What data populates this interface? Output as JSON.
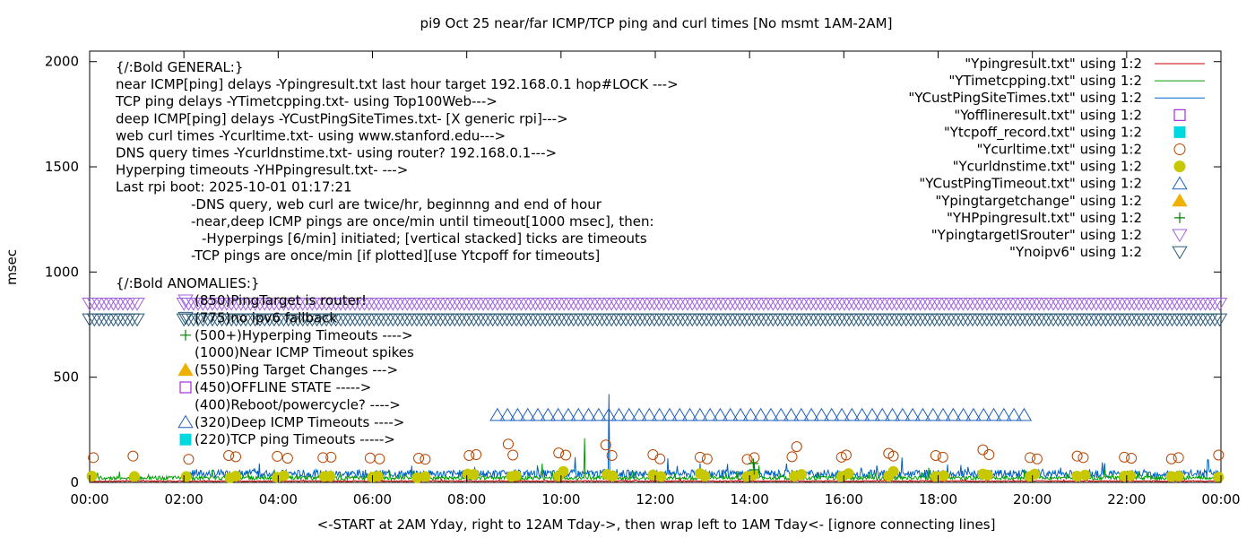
{
  "chart_data": {
    "type": "line",
    "title": "pi9 Oct 25  near/far ICMP/TCP ping and curl times [No msmt 1AM-2AM]",
    "xlabel": "<-START at 2AM Yday, right to 12AM Tday->, then wrap left to 1AM Tday<- [ignore connecting lines]",
    "ylabel": "msec",
    "xlim": [
      0,
      24
    ],
    "ylim": [
      0,
      2050
    ],
    "x_ticks": [
      0,
      2,
      4,
      6,
      8,
      10,
      12,
      14,
      16,
      18,
      20,
      22,
      24
    ],
    "x_tick_labels": [
      "00:00",
      "02:00",
      "04:00",
      "06:00",
      "08:00",
      "10:00",
      "12:00",
      "14:00",
      "16:00",
      "18:00",
      "20:00",
      "22:00",
      "00:00"
    ],
    "y_ticks": [
      0,
      500,
      1000,
      1500,
      2000
    ],
    "y_tick_labels": [
      "0",
      "500",
      "1000",
      "1500",
      "2000"
    ],
    "grid": false,
    "legend_position": "top-right",
    "legend": [
      {
        "label": "\"Ypingresult.txt\" using 1:2",
        "style": "line",
        "color": "#cc0000"
      },
      {
        "label": "\"YTimetcpping.txt\" using 1:2",
        "style": "line",
        "color": "#009e00"
      },
      {
        "label": "\"YCustPingSiteTimes.txt\" using 1:2",
        "style": "line",
        "color": "#0060c0"
      },
      {
        "label": "\"Yofflineresult.txt\" using 1:2",
        "style": "open-square",
        "color": "#9400d3"
      },
      {
        "label": "\"Ytcpoff_record.txt\" using 1:2",
        "style": "filled-square",
        "color": "#00d8e0"
      },
      {
        "label": "\"Ycurltime.txt\" using 1:2",
        "style": "open-circle",
        "color": "#b54400"
      },
      {
        "label": "\"Ycurldnstime.txt\" using 1:2",
        "style": "filled-circle",
        "color": "#c8c800"
      },
      {
        "label": "\"YCustPingTimeout.txt\" using 1:2",
        "style": "open-triangle-up",
        "color": "#1f5fc0"
      },
      {
        "label": "\"Ypingtargetchange\" using 1:2",
        "style": "filled-triangle-up",
        "color": "#f0b000"
      },
      {
        "label": "\"YHPpingresult.txt\" using 1:2",
        "style": "plus",
        "color": "#008000"
      },
      {
        "label": "\"YpingtargetISrouter\" using 1:2",
        "style": "open-triangle-down",
        "color": "#a060e0"
      },
      {
        "label": "\"Ynoipv6\" using 1:2",
        "style": "open-triangle-down",
        "color": "#2a5a7a"
      }
    ],
    "notes": [
      "{/:Bold GENERAL:}",
      "near ICMP[ping] delays -Ypingresult.txt last hour target 192.168.0.1 hop#LOCK --->",
      "TCP ping delays -YTimetcpping.txt- using Top100Web--->",
      "deep ICMP[ping] delays -YCustPingSiteTimes.txt- [X generic rpi]--->",
      "web curl times -Ycurltime.txt- using www.stanford.edu--->",
      "DNS query times -Ycurldnstime.txt- using router? 192.168.0.1--->",
      "Hyperping timeouts -YHPpingresult.txt- --->",
      "Last rpi boot: 2025-10-01 01:17:21",
      "-DNS query, web curl are twice/hr, beginnng and end of hour",
      "-near,deep ICMP pings are once/min until timeout[1000 msec], then:",
      "-Hyperpings [6/min] initiated; [vertical stacked] ticks are timeouts",
      "-TCP pings are once/min [if plotted][use Ytcpoff for timeouts]",
      "{/:Bold ANOMALIES:}"
    ],
    "anomalies": [
      {
        "label": "(850)PingTarget is router!",
        "marker": "open-triangle-down",
        "color": "#a060e0"
      },
      {
        "label": "(775)no ipv6 fallback",
        "marker": "open-triangle-down",
        "color": "#2a5a7a"
      },
      {
        "label": "(500+)Hyperping Timeouts ---->",
        "marker": "plus",
        "color": "#008000"
      },
      {
        "label": "(1000)Near ICMP Timeout spikes",
        "marker": "none",
        "color": "#cc0000"
      },
      {
        "label": "(550)Ping Target Changes --->",
        "marker": "filled-triangle-up",
        "color": "#f0b000"
      },
      {
        "label": "(450)OFFLINE STATE ----->",
        "marker": "open-square",
        "color": "#9400d3"
      },
      {
        "label": "(400)Reboot/powercycle? ---->",
        "marker": "none",
        "color": "#b54400"
      },
      {
        "label": "(320)Deep ICMP Timeouts ---->",
        "marker": "open-triangle-up",
        "color": "#1f5fc0"
      },
      {
        "label": "(220)TCP ping Timeouts ----->",
        "marker": "filled-square",
        "color": "#00d8e0"
      }
    ],
    "series": [
      {
        "name": "\"YpingtargetISrouter\" using 1:2",
        "marker": "open-triangle-down",
        "color": "#a060e0",
        "y": 850,
        "segments": [
          [
            0.0,
            1.1
          ],
          [
            2.0,
            24.0
          ]
        ]
      },
      {
        "name": "\"Ynoipv6\" using 1:2",
        "marker": "open-triangle-down",
        "color": "#2a5a7a",
        "y": 775,
        "segments": [
          [
            0.0,
            1.1
          ],
          [
            2.0,
            24.0
          ]
        ]
      },
      {
        "name": "\"YCustPingTimeout.txt\" using 1:2",
        "marker": "open-triangle-up",
        "color": "#1f5fc0",
        "y": 320,
        "segments": [
          [
            8.65,
            19.95
          ]
        ]
      },
      {
        "name": "\"Ycurltime.txt\" using 1:2",
        "marker": "open-circle",
        "color": "#b54400",
        "points": [
          [
            0.08,
            118
          ],
          [
            0.92,
            125
          ],
          [
            2.1,
            110
          ],
          [
            2.95,
            128
          ],
          [
            3.1,
            122
          ],
          [
            3.98,
            124
          ],
          [
            4.2,
            115
          ],
          [
            4.95,
            118
          ],
          [
            5.12,
            120
          ],
          [
            5.95,
            116
          ],
          [
            6.15,
            112
          ],
          [
            6.98,
            115
          ],
          [
            7.12,
            110
          ],
          [
            8.05,
            128
          ],
          [
            8.2,
            132
          ],
          [
            8.88,
            182
          ],
          [
            8.98,
            130
          ],
          [
            9.95,
            140
          ],
          [
            10.1,
            130
          ],
          [
            10.95,
            178
          ],
          [
            11.08,
            128
          ],
          [
            11.95,
            132
          ],
          [
            12.1,
            112
          ],
          [
            12.95,
            120
          ],
          [
            13.1,
            112
          ],
          [
            13.95,
            110
          ],
          [
            14.1,
            118
          ],
          [
            14.9,
            122
          ],
          [
            15.0,
            170
          ],
          [
            15.95,
            120
          ],
          [
            16.05,
            130
          ],
          [
            16.95,
            138
          ],
          [
            17.05,
            125
          ],
          [
            17.95,
            128
          ],
          [
            18.1,
            120
          ],
          [
            18.95,
            155
          ],
          [
            19.08,
            132
          ],
          [
            19.95,
            118
          ],
          [
            20.1,
            112
          ],
          [
            20.95,
            125
          ],
          [
            21.08,
            118
          ],
          [
            21.95,
            120
          ],
          [
            22.1,
            115
          ],
          [
            22.95,
            112
          ],
          [
            23.1,
            118
          ],
          [
            23.95,
            130
          ]
        ]
      },
      {
        "name": "\"Ycurldnstime.txt\" using 1:2",
        "marker": "filled-circle",
        "color": "#c8c800",
        "points": [
          [
            0.05,
            30
          ],
          [
            0.95,
            28
          ],
          [
            2.05,
            28
          ],
          [
            2.98,
            22
          ],
          [
            3.1,
            30
          ],
          [
            3.98,
            24
          ],
          [
            4.12,
            32
          ],
          [
            4.98,
            28
          ],
          [
            5.1,
            30
          ],
          [
            6.0,
            25
          ],
          [
            6.12,
            30
          ],
          [
            6.95,
            22
          ],
          [
            7.12,
            28
          ],
          [
            8.02,
            40
          ],
          [
            8.15,
            38
          ],
          [
            8.95,
            28
          ],
          [
            9.05,
            32
          ],
          [
            9.95,
            30
          ],
          [
            10.05,
            52
          ],
          [
            10.98,
            38
          ],
          [
            11.1,
            30
          ],
          [
            11.95,
            35
          ],
          [
            12.12,
            28
          ],
          [
            12.95,
            42
          ],
          [
            13.05,
            30
          ],
          [
            13.95,
            28
          ],
          [
            14.08,
            35
          ],
          [
            14.95,
            30
          ],
          [
            15.1,
            38
          ],
          [
            15.95,
            28
          ],
          [
            16.1,
            42
          ],
          [
            16.95,
            30
          ],
          [
            17.05,
            52
          ],
          [
            17.95,
            28
          ],
          [
            18.12,
            32
          ],
          [
            18.95,
            40
          ],
          [
            19.05,
            35
          ],
          [
            19.95,
            28
          ],
          [
            20.05,
            40
          ],
          [
            20.95,
            30
          ],
          [
            21.12,
            35
          ],
          [
            21.95,
            30
          ],
          [
            22.08,
            32
          ],
          [
            22.95,
            28
          ],
          [
            23.1,
            30
          ],
          [
            23.95,
            25
          ]
        ]
      },
      {
        "name": "\"YHPpingresult.txt\" using 1:2",
        "marker": "plus",
        "color": "#008000",
        "points": [
          [
            14.08,
            90
          ],
          [
            14.1,
            60
          ]
        ]
      }
    ],
    "noise_series": [
      {
        "name": "\"YCustPingSiteTimes.txt\" using 1:2",
        "color": "#0060c0",
        "start": 2.0,
        "end": 24.0,
        "base": 22,
        "spread": 38,
        "spikes": [
          [
            11.02,
            420
          ],
          [
            10.3,
            120
          ],
          [
            14.1,
            90
          ],
          [
            9.5,
            80
          ],
          [
            16.7,
            80
          ],
          [
            20.6,
            70
          ]
        ]
      },
      {
        "name": "\"YTimetcpping.txt\" using 1:2",
        "color": "#009e00",
        "start": 0.0,
        "end": 24.0,
        "base": 12,
        "spread": 18,
        "spikes": [
          [
            10.5,
            210
          ],
          [
            9.6,
            90
          ],
          [
            14.2,
            80
          ],
          [
            17.8,
            70
          ],
          [
            2.6,
            60
          ]
        ]
      },
      {
        "name": "\"Ypingresult.txt\" using 1:2",
        "color": "#cc0000",
        "start": 0.0,
        "end": 24.0,
        "base": 4,
        "spread": 5,
        "spikes": []
      }
    ]
  }
}
